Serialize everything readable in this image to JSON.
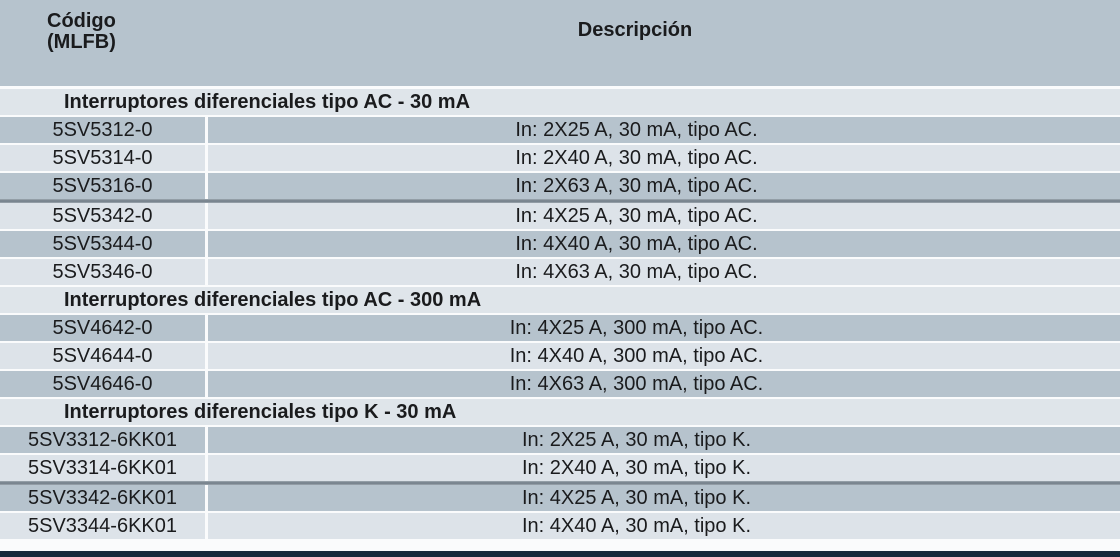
{
  "table": {
    "header": {
      "code_label": "Código\n(MLFB)",
      "description_label": "Descripción"
    },
    "sections": [
      {
        "title": "Interruptores diferenciales tipo AC - 30 mA",
        "rows": [
          {
            "code": "5SV5312-0",
            "desc": "In: 2X25 A, 30 mA, tipo AC."
          },
          {
            "code": "5SV5314-0",
            "desc": "In: 2X40 A, 30 mA, tipo AC."
          },
          {
            "code": "5SV5316-0",
            "desc": "In: 2X63 A, 30 mA, tipo AC."
          },
          {
            "code": "5SV5342-0",
            "desc": "In: 4X25 A, 30 mA, tipo AC."
          },
          {
            "code": "5SV5344-0",
            "desc": "In: 4X40 A, 30 mA, tipo AC."
          },
          {
            "code": "5SV5346-0",
            "desc": "In: 4X63 A, 30 mA, tipo AC."
          }
        ]
      },
      {
        "title": "Interruptores diferenciales tipo AC - 300 mA",
        "rows": [
          {
            "code": "5SV4642-0",
            "desc": "In: 4X25 A, 300 mA, tipo AC."
          },
          {
            "code": "5SV4644-0",
            "desc": "In: 4X40 A, 300 mA, tipo AC."
          },
          {
            "code": "5SV4646-0",
            "desc": "In: 4X63 A, 300 mA, tipo AC."
          }
        ]
      },
      {
        "title": "Interruptores diferenciales tipo K - 30 mA",
        "rows": [
          {
            "code": "5SV3312-6KK01",
            "desc": "In: 2X25 A, 30 mA, tipo K."
          },
          {
            "code": "5SV3314-6KK01",
            "desc": "In: 2X40 A, 30 mA, tipo K."
          },
          {
            "code": "5SV3342-6KK01",
            "desc": "In: 4X25 A, 30 mA, tipo K."
          },
          {
            "code": "5SV3344-6KK01",
            "desc": "In: 4X40 A, 30 mA, tipo K."
          }
        ]
      }
    ]
  },
  "colors": {
    "header_bg": "#b6c3cd",
    "row_dark": "#b6c3cd",
    "row_light": "#dde3e9",
    "section_bg": "#dfe5ea",
    "gap_bg": "#fafbfc",
    "divider": "#77838d",
    "bottom_bar": "#16293a",
    "text": "#1a1b1d"
  }
}
